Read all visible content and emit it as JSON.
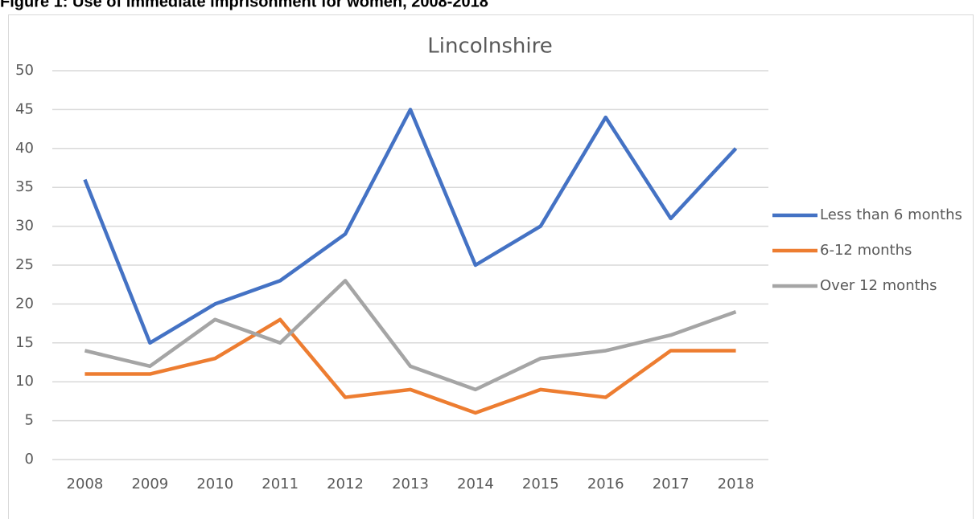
{
  "heading": "Figure 1: Use of immediate imprisonment for women, 2008-2018",
  "chart_data": {
    "type": "line",
    "title": "Lincolnshire",
    "categories": [
      2008,
      2009,
      2010,
      2011,
      2012,
      2013,
      2014,
      2015,
      2016,
      2017,
      2018
    ],
    "series": [
      {
        "name": "Less than 6 months",
        "color": "#4472c4",
        "values": [
          36,
          15,
          20,
          23,
          29,
          45,
          25,
          30,
          44,
          31,
          40
        ]
      },
      {
        "name": "6-12 months",
        "color": "#ed7d31",
        "values": [
          11,
          11,
          13,
          18,
          8,
          9,
          6,
          9,
          8,
          14,
          14
        ]
      },
      {
        "name": "Over 12 months",
        "color": "#a5a5a5",
        "values": [
          14,
          12,
          18,
          15,
          23,
          12,
          9,
          13,
          14,
          16,
          19
        ]
      }
    ],
    "ylim": [
      0,
      50
    ],
    "yticks": [
      0,
      5,
      10,
      15,
      20,
      25,
      30,
      35,
      40,
      45,
      50
    ],
    "grid": true,
    "legend": "right"
  }
}
